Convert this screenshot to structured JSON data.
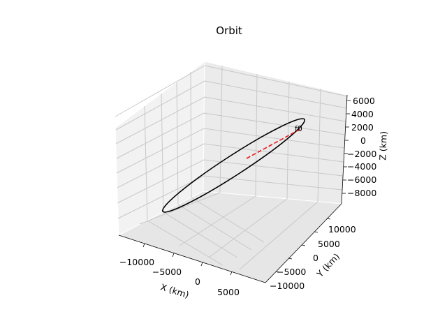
{
  "chart_data": {
    "type": "line3d",
    "title": "Orbit",
    "xlabel": "X (km)",
    "ylabel": "Y (km)",
    "zlabel": "Z (km)",
    "x_ticks": [
      "−10000",
      "−5000",
      "0",
      "5000"
    ],
    "y_ticks": [
      "−10000",
      "−5000",
      "0",
      "5000",
      "10000"
    ],
    "z_ticks": [
      "−8000",
      "−6000",
      "−4000",
      "−2000",
      "0",
      "2000",
      "4000",
      "6000"
    ],
    "grid": true,
    "series": [
      {
        "type": "orbit",
        "color": "#000000",
        "style": "solid",
        "approx_extent_x": [
          -11500,
          6500
        ],
        "approx_extent_y": [
          -10000,
          10000
        ],
        "approx_extent_z": [
          -8000,
          6000
        ]
      },
      {
        "type": "vector",
        "color": "#e41a1c",
        "style": "dashed",
        "from": [
          0,
          0,
          0
        ],
        "to_label": "f0"
      }
    ],
    "annotations": [
      {
        "text": "f0"
      }
    ]
  }
}
